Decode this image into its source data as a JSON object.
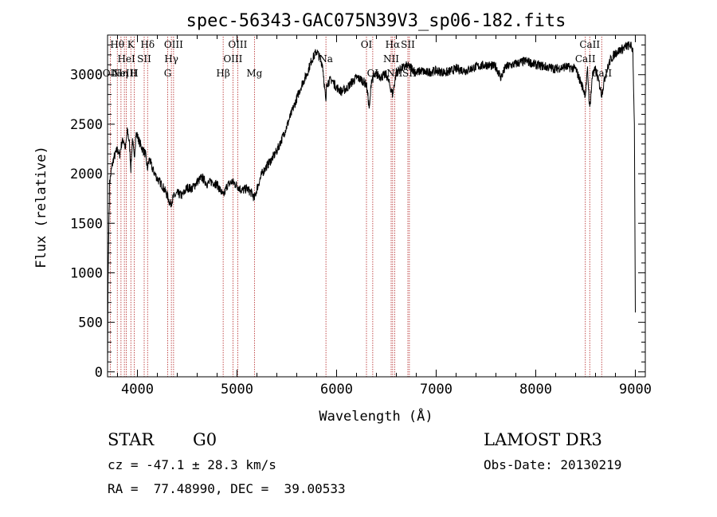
{
  "chart_data": {
    "type": "line",
    "title": "spec-56343-GAC075N39V3_sp06-182.fits",
    "xlabel": "Wavelength (Å)",
    "ylabel": "Flux (relative)",
    "xlim": [
      3700,
      9100
    ],
    "ylim": [
      -50,
      3400
    ],
    "xticks": [
      4000,
      5000,
      6000,
      7000,
      8000,
      9000
    ],
    "yticks": [
      0,
      500,
      1000,
      1500,
      2000,
      2500,
      3000
    ],
    "grid": false,
    "line_color": "#000000",
    "marker_color": "#b22222",
    "spectrum": [
      [
        3700,
        0
      ],
      [
        3705,
        900
      ],
      [
        3712,
        1400
      ],
      [
        3720,
        1900
      ],
      [
        3740,
        2050
      ],
      [
        3760,
        2150
      ],
      [
        3780,
        2200
      ],
      [
        3800,
        2250
      ],
      [
        3820,
        2180
      ],
      [
        3840,
        2300
      ],
      [
        3860,
        2350
      ],
      [
        3880,
        2250
      ],
      [
        3900,
        2450
      ],
      [
        3920,
        2300
      ],
      [
        3934,
        2050
      ],
      [
        3950,
        2350
      ],
      [
        3968,
        2150
      ],
      [
        3985,
        2400
      ],
      [
        4000,
        2380
      ],
      [
        4020,
        2320
      ],
      [
        4050,
        2250
      ],
      [
        4080,
        2200
      ],
      [
        4100,
        2050
      ],
      [
        4120,
        2150
      ],
      [
        4150,
        2050
      ],
      [
        4200,
        1950
      ],
      [
        4250,
        1880
      ],
      [
        4300,
        1780
      ],
      [
        4330,
        1690
      ],
      [
        4360,
        1760
      ],
      [
        4400,
        1800
      ],
      [
        4450,
        1780
      ],
      [
        4500,
        1860
      ],
      [
        4550,
        1850
      ],
      [
        4600,
        1920
      ],
      [
        4650,
        1960
      ],
      [
        4700,
        1900
      ],
      [
        4750,
        1920
      ],
      [
        4800,
        1890
      ],
      [
        4850,
        1800
      ],
      [
        4862,
        1770
      ],
      [
        4900,
        1880
      ],
      [
        4950,
        1920
      ],
      [
        5000,
        1880
      ],
      [
        5050,
        1830
      ],
      [
        5100,
        1850
      ],
      [
        5150,
        1800
      ],
      [
        5175,
        1750
      ],
      [
        5200,
        1850
      ],
      [
        5250,
        2000
      ],
      [
        5300,
        2080
      ],
      [
        5350,
        2150
      ],
      [
        5400,
        2230
      ],
      [
        5450,
        2350
      ],
      [
        5500,
        2480
      ],
      [
        5550,
        2620
      ],
      [
        5600,
        2760
      ],
      [
        5650,
        2900
      ],
      [
        5700,
        3000
      ],
      [
        5750,
        3150
      ],
      [
        5780,
        3200
      ],
      [
        5800,
        3240
      ],
      [
        5830,
        3170
      ],
      [
        5860,
        3100
      ],
      [
        5893,
        2700
      ],
      [
        5900,
        2920
      ],
      [
        5950,
        2950
      ],
      [
        6000,
        2870
      ],
      [
        6050,
        2830
      ],
      [
        6100,
        2860
      ],
      [
        6150,
        2920
      ],
      [
        6200,
        2970
      ],
      [
        6250,
        2950
      ],
      [
        6300,
        2900
      ],
      [
        6330,
        2650
      ],
      [
        6350,
        2950
      ],
      [
        6400,
        3000
      ],
      [
        6450,
        2980
      ],
      [
        6500,
        3000
      ],
      [
        6563,
        2800
      ],
      [
        6600,
        3030
      ],
      [
        6650,
        3060
      ],
      [
        6700,
        3090
      ],
      [
        6750,
        3070
      ],
      [
        6800,
        3020
      ],
      [
        6850,
        3040
      ],
      [
        6900,
        3020
      ],
      [
        7000,
        3040
      ],
      [
        7100,
        3020
      ],
      [
        7200,
        3060
      ],
      [
        7300,
        3040
      ],
      [
        7400,
        3080
      ],
      [
        7500,
        3100
      ],
      [
        7600,
        3080
      ],
      [
        7650,
        2970
      ],
      [
        7700,
        3080
      ],
      [
        7800,
        3110
      ],
      [
        7900,
        3140
      ],
      [
        8000,
        3100
      ],
      [
        8100,
        3080
      ],
      [
        8200,
        3060
      ],
      [
        8300,
        3080
      ],
      [
        8400,
        3060
      ],
      [
        8498,
        2800
      ],
      [
        8520,
        3050
      ],
      [
        8542,
        2650
      ],
      [
        8570,
        3000
      ],
      [
        8600,
        3050
      ],
      [
        8640,
        2900
      ],
      [
        8662,
        2800
      ],
      [
        8700,
        3000
      ],
      [
        8750,
        3150
      ],
      [
        8800,
        3220
      ],
      [
        8850,
        3250
      ],
      [
        8900,
        3280
      ],
      [
        8950,
        3300
      ],
      [
        8975,
        3250
      ],
      [
        8990,
        2500
      ],
      [
        9000,
        600
      ]
    ],
    "spectral_lines": [
      {
        "wavelength": 3727,
        "label": "OII",
        "row": 2
      },
      {
        "wavelength": 3798,
        "label": "Hθ",
        "row": 0
      },
      {
        "wavelength": 3835,
        "label": "Hη",
        "row": 2
      },
      {
        "wavelength": 3869,
        "label": "NeIII",
        "row": 2
      },
      {
        "wavelength": 3889,
        "label": "HeI",
        "row": 1
      },
      {
        "wavelength": 3934,
        "label": "K",
        "row": 0
      },
      {
        "wavelength": 3968,
        "label": "H",
        "row": 2
      },
      {
        "wavelength": 4068,
        "label": "SII",
        "row": 1
      },
      {
        "wavelength": 4102,
        "label": "Hδ",
        "row": 0
      },
      {
        "wavelength": 4304,
        "label": "G",
        "row": 2
      },
      {
        "wavelength": 4341,
        "label": "Hγ",
        "row": 1
      },
      {
        "wavelength": 4363,
        "label": "OIII",
        "row": 0
      },
      {
        "wavelength": 4861,
        "label": "Hβ",
        "row": 2
      },
      {
        "wavelength": 4959,
        "label": "OIII",
        "row": 1
      },
      {
        "wavelength": 5007,
        "label": "OIII",
        "row": 0
      },
      {
        "wavelength": 5175,
        "label": "Mg",
        "row": 2
      },
      {
        "wavelength": 5893,
        "label": "Na",
        "row": 1
      },
      {
        "wavelength": 6300,
        "label": "OI",
        "row": 0
      },
      {
        "wavelength": 6363,
        "label": "OI",
        "row": 2
      },
      {
        "wavelength": 6548,
        "label": "NII",
        "row": 1
      },
      {
        "wavelength": 6563,
        "label": "Hα",
        "row": 0
      },
      {
        "wavelength": 6583,
        "label": "NII",
        "row": 2
      },
      {
        "wavelength": 6716,
        "label": "SII",
        "row": 0
      },
      {
        "wavelength": 6731,
        "label": "SII",
        "row": 2
      },
      {
        "wavelength": 8498,
        "label": "CaII",
        "row": 1
      },
      {
        "wavelength": 8542,
        "label": "CaII",
        "row": 0
      },
      {
        "wavelength": 8662,
        "label": "CaII",
        "row": 2
      }
    ]
  },
  "info": {
    "object_class": "STAR",
    "subclass": "G0",
    "survey": "LAMOST DR3",
    "velocity": "cz = -47.1 ± 28.3 km/s",
    "obs_date": "Obs-Date: 20130219",
    "coords": "RA =  77.48990, DEC =  39.00533"
  }
}
